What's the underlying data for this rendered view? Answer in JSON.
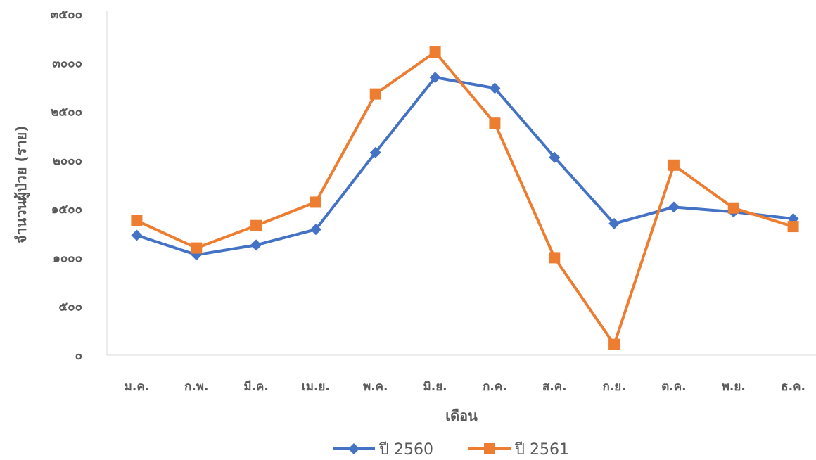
{
  "chart_data": {
    "type": "line",
    "title": "",
    "xlabel": "เดือน",
    "ylabel": "จำนวนผู้ป่วย (ราย)",
    "ylim": [
      0,
      3500
    ],
    "yticks": [
      0,
      500,
      1000,
      1500,
      2000,
      2500,
      3000,
      3500
    ],
    "ytick_labels": [
      "๐",
      "๕๐๐",
      "๑๐๐๐",
      "๑๕๐๐",
      "๒๐๐๐",
      "๒๕๐๐",
      "๓๐๐๐",
      "๓๕๐๐"
    ],
    "categories": [
      "ม.ค.",
      "ก.พ.",
      "มี.ค.",
      "เม.ย.",
      "พ.ค.",
      "มิ.ย.",
      "ก.ค.",
      "ส.ค.",
      "ก.ย.",
      "ต.ค.",
      "พ.ย.",
      "ธ.ค."
    ],
    "grid": false,
    "legend": "bottom",
    "series": [
      {
        "name": "ปี 2560",
        "color": "#4472C4",
        "marker": "diamond",
        "values": [
          1230,
          1030,
          1130,
          1290,
          2080,
          2850,
          2740,
          2030,
          1350,
          1520,
          1470,
          1400
        ]
      },
      {
        "name": "ปี 2561",
        "color": "#ED7D31",
        "marker": "square",
        "values": [
          1380,
          1100,
          1330,
          1570,
          2680,
          3110,
          2380,
          1000,
          110,
          1950,
          1510,
          1320
        ]
      }
    ]
  }
}
